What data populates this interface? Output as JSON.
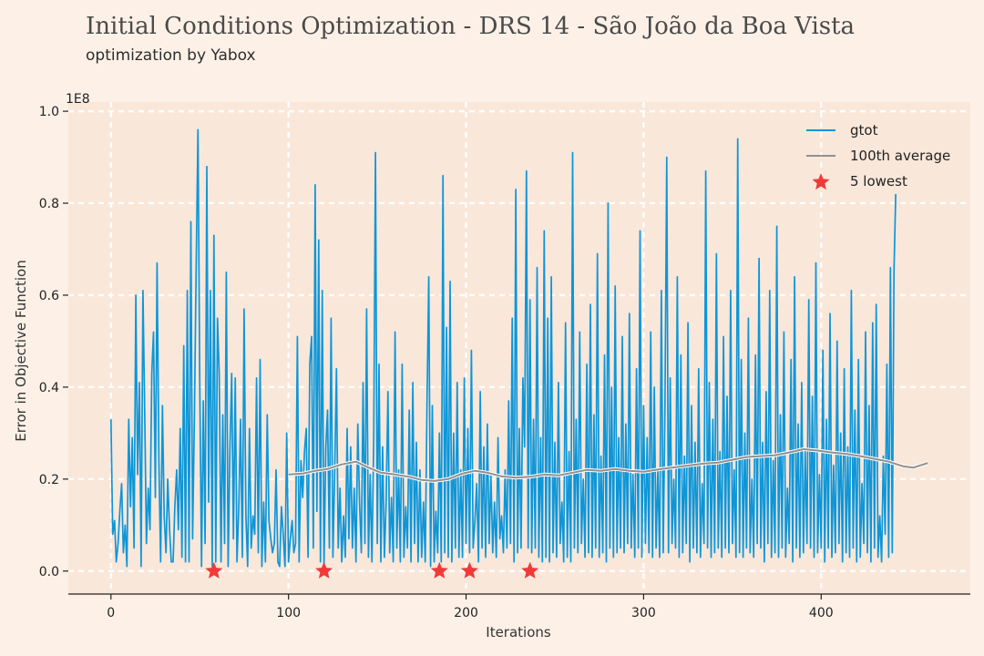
{
  "header": {
    "title": "Initial Conditions Optimization - DRS 14 - São João da Boa Vista",
    "subtitle": "optimization by Yabox"
  },
  "chart_data": {
    "type": "line",
    "xlabel": "Iterations",
    "ylabel": "Error in Objective Function",
    "y_multiplier_label": "1E8",
    "xlim": [
      -24,
      484
    ],
    "ylim": [
      -0.05,
      1.02
    ],
    "x_ticks": [
      0,
      100,
      200,
      300,
      400
    ],
    "x_tick_labels": [
      "0",
      "100",
      "200",
      "300",
      "400"
    ],
    "y_ticks": [
      0.0,
      0.2,
      0.4,
      0.6,
      0.8,
      1.0
    ],
    "y_tick_labels": [
      "0.0",
      "0.2",
      "0.4",
      "0.6",
      "0.8",
      "1.0"
    ],
    "grid": true,
    "legend_position": "top-right",
    "series": [
      {
        "name": "gtot",
        "color": "#0d96d8",
        "x_start": 0,
        "x_step": 1,
        "values": [
          0.33,
          0.08,
          0.11,
          0.02,
          0.06,
          0.13,
          0.19,
          0.04,
          0.1,
          0.01,
          0.33,
          0.14,
          0.29,
          0.05,
          0.6,
          0.21,
          0.41,
          0.01,
          0.61,
          0.35,
          0.06,
          0.18,
          0.09,
          0.43,
          0.52,
          0.16,
          0.67,
          0.24,
          0.02,
          0.36,
          0.12,
          0.04,
          0.2,
          0.09,
          0.02,
          0.02,
          0.14,
          0.22,
          0.09,
          0.31,
          0.03,
          0.49,
          0.02,
          0.61,
          0.02,
          0.76,
          0.07,
          0.34,
          0.66,
          0.96,
          0.42,
          0.01,
          0.37,
          0.06,
          0.88,
          0.15,
          0.61,
          0.01,
          0.73,
          0.02,
          0.55,
          0.43,
          0.02,
          0.34,
          0.06,
          0.65,
          0.01,
          0.26,
          0.43,
          0.07,
          0.42,
          0.02,
          0.14,
          0.33,
          0.03,
          0.57,
          0.12,
          0.01,
          0.31,
          0.05,
          0.12,
          0.08,
          0.42,
          0.04,
          0.46,
          0.01,
          0.15,
          0.02,
          0.34,
          0.11,
          0.07,
          0.04,
          0.06,
          0.22,
          0.02,
          0.01,
          0.14,
          0.08,
          0.01,
          0.3,
          0.02,
          0.07,
          0.11,
          0.04,
          0.06,
          0.51,
          0.02,
          0.24,
          0.16,
          0.26,
          0.31,
          0.03,
          0.45,
          0.51,
          0.05,
          0.84,
          0.13,
          0.72,
          0.02,
          0.61,
          0.01,
          0.27,
          0.35,
          0.05,
          0.55,
          0.03,
          0.21,
          0.44,
          0.05,
          0.18,
          0.02,
          0.12,
          0.03,
          0.31,
          0.07,
          0.27,
          0.05,
          0.18,
          0.02,
          0.32,
          0.15,
          0.04,
          0.41,
          0.06,
          0.57,
          0.03,
          0.21,
          0.02,
          0.29,
          0.91,
          0.06,
          0.45,
          0.02,
          0.27,
          0.03,
          0.15,
          0.39,
          0.04,
          0.16,
          0.02,
          0.52,
          0.05,
          0.22,
          0.02,
          0.45,
          0.03,
          0.14,
          0.05,
          0.35,
          0.02,
          0.41,
          0.06,
          0.28,
          0.02,
          0.22,
          0.03,
          0.15,
          0.02,
          0.37,
          0.64,
          0.01,
          0.36,
          0.02,
          0.13,
          0.04,
          0.3,
          0.02,
          0.86,
          0.04,
          0.53,
          0.03,
          0.63,
          0.02,
          0.3,
          0.05,
          0.41,
          0.03,
          0.22,
          0.03,
          0.42,
          0.06,
          0.31,
          0.04,
          0.48,
          0.05,
          0.11,
          0.19,
          0.02,
          0.39,
          0.05,
          0.27,
          0.03,
          0.32,
          0.06,
          0.21,
          0.04,
          0.15,
          0.03,
          0.29,
          0.07,
          0.12,
          0.04,
          0.22,
          0.05,
          0.37,
          0.06,
          0.55,
          0.02,
          0.83,
          0.04,
          0.31,
          0.05,
          0.42,
          0.27,
          0.87,
          0.05,
          0.59,
          0.04,
          0.33,
          0.05,
          0.66,
          0.03,
          0.29,
          0.02,
          0.74,
          0.03,
          0.55,
          0.02,
          0.64,
          0.04,
          0.28,
          0.03,
          0.41,
          0.06,
          0.15,
          0.02,
          0.54,
          0.03,
          0.26,
          0.02,
          0.91,
          0.05,
          0.33,
          0.04,
          0.52,
          0.06,
          0.2,
          0.03,
          0.45,
          0.04,
          0.58,
          0.03,
          0.34,
          0.05,
          0.69,
          0.03,
          0.25,
          0.04,
          0.47,
          0.02,
          0.8,
          0.05,
          0.4,
          0.03,
          0.62,
          0.04,
          0.29,
          0.05,
          0.51,
          0.04,
          0.32,
          0.06,
          0.56,
          0.05,
          0.21,
          0.03,
          0.44,
          0.05,
          0.74,
          0.03,
          0.36,
          0.06,
          0.29,
          0.04,
          0.52,
          0.03,
          0.4,
          0.05,
          0.22,
          0.03,
          0.61,
          0.04,
          0.35,
          0.9,
          0.04,
          0.42,
          0.06,
          0.2,
          0.05,
          0.64,
          0.03,
          0.47,
          0.04,
          0.25,
          0.06,
          0.54,
          0.02,
          0.36,
          0.05,
          0.28,
          0.04,
          0.44,
          0.03,
          0.19,
          0.06,
          0.87,
          0.05,
          0.41,
          0.03,
          0.33,
          0.04,
          0.69,
          0.05,
          0.26,
          0.03,
          0.51,
          0.05,
          0.38,
          0.04,
          0.61,
          0.06,
          0.22,
          0.03,
          0.94,
          0.04,
          0.46,
          0.03,
          0.3,
          0.05,
          0.55,
          0.04,
          0.2,
          0.03,
          0.47,
          0.06,
          0.68,
          0.05,
          0.28,
          0.02,
          0.39,
          0.06,
          0.61,
          0.03,
          0.24,
          0.04,
          0.75,
          0.03,
          0.34,
          0.05,
          0.52,
          0.03,
          0.18,
          0.06,
          0.46,
          0.02,
          0.64,
          0.05,
          0.32,
          0.03,
          0.41,
          0.04,
          0.26,
          0.06,
          0.59,
          0.05,
          0.38,
          0.03,
          0.67,
          0.04,
          0.21,
          0.05,
          0.48,
          0.02,
          0.33,
          0.05,
          0.56,
          0.03,
          0.23,
          0.04,
          0.5,
          0.06,
          0.3,
          0.02,
          0.44,
          0.04,
          0.27,
          0.03,
          0.61,
          0.05,
          0.35,
          0.02,
          0.46,
          0.03,
          0.19,
          0.06,
          0.52,
          0.04,
          0.36,
          0.02,
          0.54,
          0.05,
          0.58,
          0.03,
          0.12,
          0.02,
          0.25,
          0.08,
          0.45,
          0.03,
          0.66,
          0.04,
          0.65,
          0.82
        ]
      },
      {
        "name": "100th average",
        "color": "#909090",
        "points": [
          [
            100,
            0.21
          ],
          [
            108,
            0.212
          ],
          [
            115,
            0.218
          ],
          [
            122,
            0.222
          ],
          [
            130,
            0.232
          ],
          [
            138,
            0.238
          ],
          [
            145,
            0.225
          ],
          [
            152,
            0.214
          ],
          [
            160,
            0.21
          ],
          [
            168,
            0.205
          ],
          [
            175,
            0.198
          ],
          [
            182,
            0.196
          ],
          [
            190,
            0.2
          ],
          [
            198,
            0.212
          ],
          [
            205,
            0.218
          ],
          [
            212,
            0.214
          ],
          [
            220,
            0.206
          ],
          [
            228,
            0.203
          ],
          [
            236,
            0.205
          ],
          [
            244,
            0.21
          ],
          [
            252,
            0.208
          ],
          [
            260,
            0.214
          ],
          [
            268,
            0.22
          ],
          [
            276,
            0.218
          ],
          [
            284,
            0.222
          ],
          [
            292,
            0.218
          ],
          [
            300,
            0.216
          ],
          [
            310,
            0.222
          ],
          [
            318,
            0.226
          ],
          [
            326,
            0.23
          ],
          [
            334,
            0.234
          ],
          [
            342,
            0.236
          ],
          [
            350,
            0.242
          ],
          [
            358,
            0.248
          ],
          [
            366,
            0.25
          ],
          [
            374,
            0.252
          ],
          [
            382,
            0.258
          ],
          [
            390,
            0.265
          ],
          [
            398,
            0.262
          ],
          [
            406,
            0.258
          ],
          [
            414,
            0.255
          ],
          [
            422,
            0.25
          ],
          [
            430,
            0.244
          ],
          [
            438,
            0.238
          ],
          [
            446,
            0.228
          ],
          [
            452,
            0.225
          ],
          [
            460,
            0.235
          ]
        ]
      }
    ],
    "lowest": {
      "name": "5 lowest",
      "color": "#f03a3a",
      "points": [
        [
          58,
          0.0
        ],
        [
          120,
          0.0
        ],
        [
          185,
          0.0
        ],
        [
          202,
          0.0
        ],
        [
          236,
          0.0
        ]
      ]
    }
  }
}
